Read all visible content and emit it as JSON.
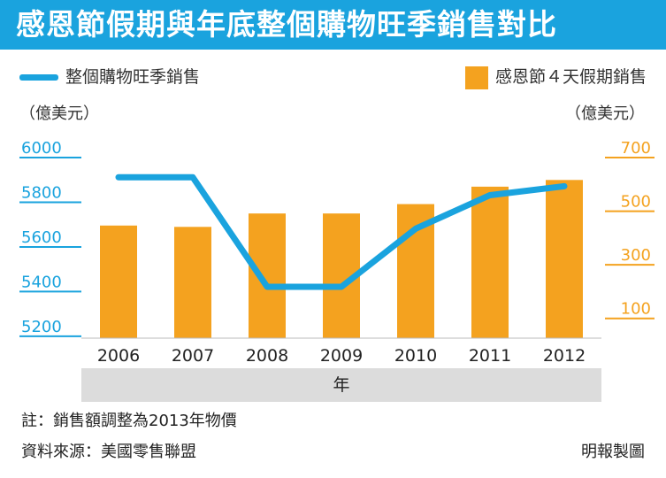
{
  "header": {
    "title": "感恩節假期與年底整個購物旺季銷售對比"
  },
  "legend": {
    "line_label": "整個購物旺季銷售",
    "bar_label": "感恩節４天假期銷售",
    "left_unit": "（億美元）",
    "right_unit": "（億美元）"
  },
  "footer": {
    "note": "註：銷售額調整為2013年物價",
    "source": "資料來源：美國零售聯盟",
    "credit": "明報製圖"
  },
  "colors": {
    "line": "#1aa3de",
    "bar": "#f4a21f",
    "band": "#dcdcdc"
  },
  "chart_data": {
    "type": "bar",
    "title": "感恩節假期與年底整個購物旺季銷售對比",
    "xlabel": "年",
    "categories": [
      "2006",
      "2007",
      "2008",
      "2009",
      "2010",
      "2011",
      "2012"
    ],
    "series": [
      {
        "name": "感恩節４天假期銷售",
        "type": "bar",
        "axis": "right",
        "values": [
          420,
          415,
          465,
          465,
          500,
          565,
          590
        ]
      },
      {
        "name": "整個購物旺季銷售",
        "type": "line",
        "axis": "left",
        "values": [
          5880,
          5880,
          5390,
          5390,
          5650,
          5800,
          5840
        ]
      }
    ],
    "y_left": {
      "label": "（億美元）",
      "ticks": [
        5200,
        5400,
        5600,
        5800,
        6000
      ],
      "lim": [
        5160,
        6000
      ]
    },
    "y_right": {
      "label": "（億美元）",
      "ticks": [
        100,
        300,
        500,
        700
      ],
      "lim": [
        0,
        700
      ]
    },
    "grid": false,
    "legend_position": "top"
  }
}
